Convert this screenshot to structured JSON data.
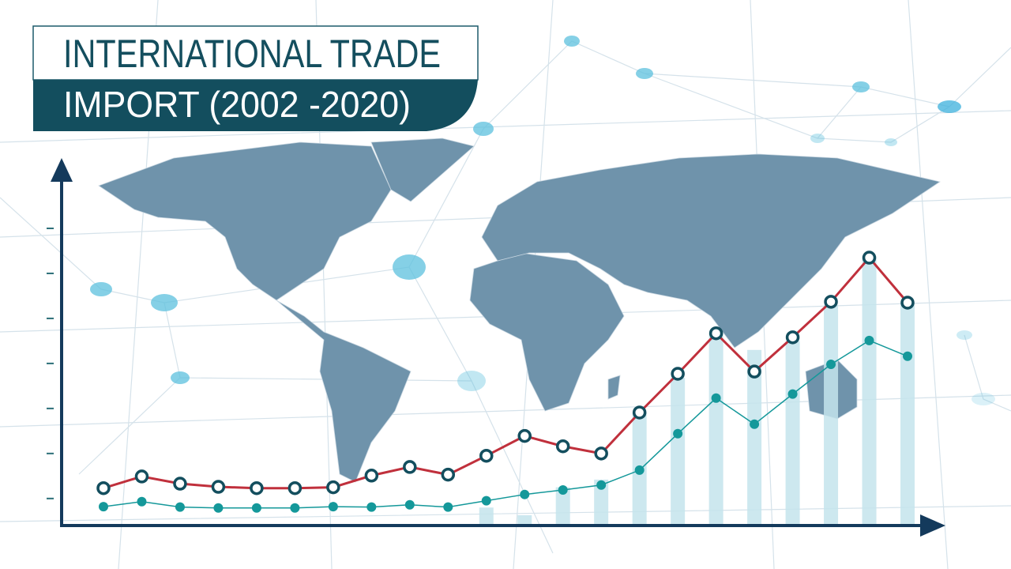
{
  "chart_data": {
    "type": "line",
    "title": "INTERNATIONAL TRADE",
    "subtitle": "IMPORT (2002 -2020)",
    "categories": [
      null,
      null,
      null,
      null,
      null,
      null,
      null,
      null,
      null,
      null,
      null,
      null,
      null,
      null,
      null,
      null,
      null,
      null,
      null,
      null,
      null,
      null
    ],
    "ylim": [
      0.4,
      8
    ],
    "yticks": [
      1,
      2,
      3,
      4,
      5,
      6,
      7
    ],
    "series": [
      {
        "type": "bar",
        "color": "#c4e4ec",
        "values": [
          null,
          null,
          null,
          null,
          null,
          null,
          null,
          null,
          null,
          null,
          0.8,
          0.63,
          1.25,
          1.42,
          2.91,
          3.68,
          4.67,
          4.3,
          4.5,
          5.3,
          6.35,
          5.35
        ]
      },
      {
        "type": "line",
        "color": "#14989a",
        "values": [
          0.82,
          0.93,
          0.81,
          0.79,
          0.79,
          0.79,
          0.82,
          0.81,
          0.86,
          0.81,
          0.95,
          1.09,
          1.19,
          1.3,
          1.63,
          2.44,
          3.23,
          2.65,
          3.32,
          3.98,
          4.51,
          4.16
        ]
      },
      {
        "type": "line",
        "color": "#c0303c",
        "values": [
          1.23,
          1.49,
          1.33,
          1.26,
          1.23,
          1.23,
          1.25,
          1.51,
          1.7,
          1.53,
          1.95,
          2.39,
          2.16,
          2.0,
          2.91,
          3.77,
          4.67,
          3.82,
          4.58,
          5.37,
          6.35,
          5.35
        ]
      }
    ]
  }
}
